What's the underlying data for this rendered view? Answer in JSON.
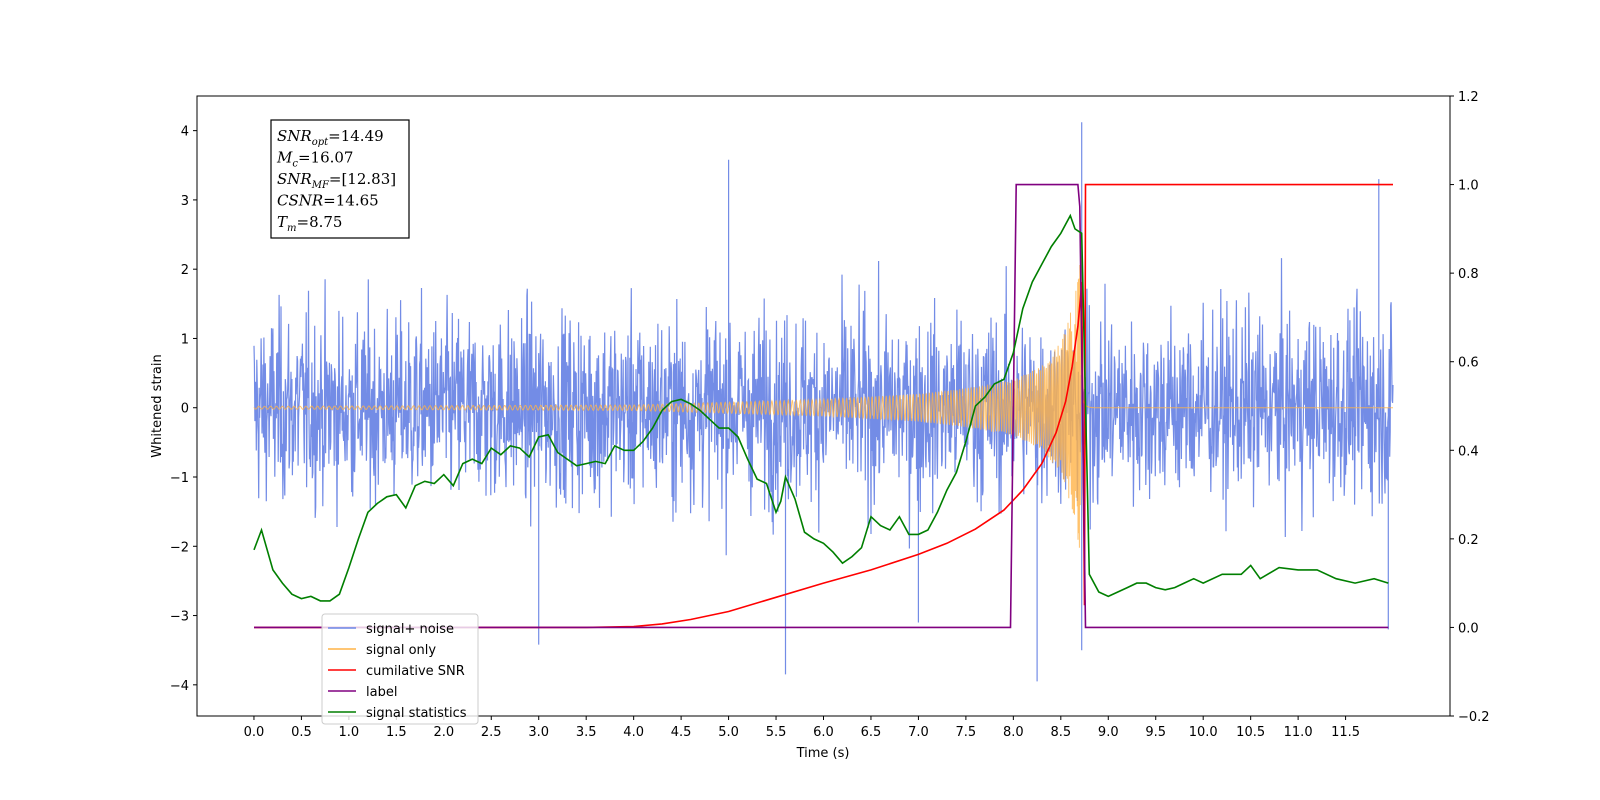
{
  "chart_data": {
    "type": "line",
    "xlabel": "Time (s)",
    "ylabel": "Whitened strain",
    "xlim": [
      -0.6,
      12.6
    ],
    "ylim": [
      -4.45,
      4.5
    ],
    "y2lim": [
      -0.2,
      1.2
    ],
    "x_ticks": [
      0.0,
      0.5,
      1.0,
      1.5,
      2.0,
      2.5,
      3.0,
      3.5,
      4.0,
      4.5,
      5.0,
      5.5,
      6.0,
      6.5,
      7.0,
      7.5,
      8.0,
      8.5,
      9.0,
      9.5,
      10.0,
      10.5,
      11.0,
      11.5
    ],
    "x_tick_labels": [
      "0.0",
      "0.5",
      "1.0",
      "1.5",
      "2.0",
      "2.5",
      "3.0",
      "3.5",
      "4.0",
      "4.5",
      "5.0",
      "5.5",
      "6.0",
      "6.5",
      "7.0",
      "7.5",
      "8.0",
      "8.5",
      "9.0",
      "9.5",
      "10.0",
      "10.5",
      "11.0",
      "11.5"
    ],
    "y_ticks": [
      4,
      3,
      2,
      1,
      0,
      -1,
      -2,
      -3,
      -4
    ],
    "y_tick_labels": [
      "4",
      "3",
      "2",
      "1",
      "0",
      "−1",
      "−2",
      "−3",
      "−4"
    ],
    "y2_ticks": [
      1.2,
      1.0,
      0.8,
      0.6,
      0.4,
      0.2,
      0.0,
      -0.2
    ],
    "y2_tick_labels": [
      "1.2",
      "1.0",
      "0.8",
      "0.6",
      "0.4",
      "0.2",
      "0.0",
      "−0.2"
    ],
    "grid": false,
    "legend_position": "bottom-left",
    "noise_series": {
      "name": "signal+ noise",
      "color": "#6b86e5",
      "x_start": 0.0,
      "x_end": 12.0,
      "typical_range": [
        -2.3,
        2.5
      ],
      "extremes": [
        {
          "x": 5.0,
          "y": 3.58
        },
        {
          "x": 5.6,
          "y": -3.85
        },
        {
          "x": 8.25,
          "y": -3.95
        },
        {
          "x": 8.72,
          "y": 4.12
        },
        {
          "x": 8.72,
          "y": -3.5
        },
        {
          "x": 3.0,
          "y": -3.42
        },
        {
          "x": 7.0,
          "y": -3.1
        },
        {
          "x": 11.85,
          "y": 3.3
        },
        {
          "x": 11.95,
          "y": -3.2
        }
      ]
    },
    "chirp_series": {
      "name": "signal only",
      "color": "#ffb347",
      "x_start": 0.0,
      "x_end": 12.0,
      "merger_time": 8.72,
      "envelope": [
        [
          0.0,
          0.02
        ],
        [
          4.0,
          0.04
        ],
        [
          5.0,
          0.08
        ],
        [
          6.0,
          0.12
        ],
        [
          7.0,
          0.2
        ],
        [
          7.5,
          0.28
        ],
        [
          8.0,
          0.4
        ],
        [
          8.3,
          0.6
        ],
        [
          8.5,
          0.95
        ],
        [
          8.65,
          1.6
        ],
        [
          8.72,
          2.3
        ]
      ]
    },
    "series": [
      {
        "name": "cumilative SNR",
        "color": "#ff0000",
        "axis": "right",
        "x": [
          0.0,
          3.5,
          4.0,
          4.3,
          4.6,
          5.0,
          5.5,
          6.0,
          6.5,
          7.0,
          7.3,
          7.6,
          7.9,
          8.1,
          8.3,
          8.45,
          8.55,
          8.62,
          8.68,
          8.71,
          8.72,
          8.75,
          8.76,
          12.0
        ],
        "y": [
          0.0,
          0.0,
          0.002,
          0.008,
          0.018,
          0.036,
          0.068,
          0.1,
          0.13,
          0.165,
          0.19,
          0.222,
          0.265,
          0.31,
          0.37,
          0.44,
          0.51,
          0.59,
          0.68,
          0.75,
          0.78,
          0.05,
          1.0,
          1.0
        ]
      },
      {
        "name": "label",
        "color": "#800080",
        "axis": "right",
        "x": [
          0.0,
          7.97,
          8.03,
          8.68,
          8.7,
          8.76,
          11.95
        ],
        "y": [
          0.0,
          0.0,
          1.0,
          1.0,
          0.95,
          0.0,
          0.0
        ]
      },
      {
        "name": "signal statistics",
        "color": "#007f00",
        "axis": "right",
        "x": [
          0.0,
          0.08,
          0.2,
          0.3,
          0.4,
          0.5,
          0.6,
          0.7,
          0.8,
          0.9,
          1.0,
          1.1,
          1.2,
          1.3,
          1.4,
          1.5,
          1.6,
          1.7,
          1.8,
          1.9,
          2.0,
          2.1,
          2.2,
          2.3,
          2.4,
          2.5,
          2.6,
          2.7,
          2.8,
          2.9,
          3.0,
          3.1,
          3.2,
          3.3,
          3.4,
          3.5,
          3.6,
          3.7,
          3.8,
          3.9,
          4.0,
          4.1,
          4.2,
          4.3,
          4.4,
          4.5,
          4.6,
          4.7,
          4.8,
          4.9,
          5.0,
          5.1,
          5.2,
          5.3,
          5.4,
          5.5,
          5.55,
          5.6,
          5.7,
          5.8,
          5.9,
          6.0,
          6.1,
          6.2,
          6.3,
          6.4,
          6.5,
          6.6,
          6.7,
          6.8,
          6.9,
          7.0,
          7.1,
          7.2,
          7.3,
          7.4,
          7.5,
          7.6,
          7.7,
          7.8,
          7.9,
          8.0,
          8.1,
          8.2,
          8.3,
          8.4,
          8.5,
          8.6,
          8.65,
          8.72,
          8.8,
          8.9,
          9.0,
          9.1,
          9.2,
          9.3,
          9.4,
          9.5,
          9.6,
          9.7,
          9.8,
          9.9,
          10.0,
          10.2,
          10.4,
          10.5,
          10.6,
          10.8,
          11.0,
          11.2,
          11.4,
          11.6,
          11.8,
          11.95
        ],
        "y": [
          0.175,
          0.22,
          0.13,
          0.1,
          0.075,
          0.065,
          0.07,
          0.06,
          0.06,
          0.075,
          0.135,
          0.2,
          0.26,
          0.28,
          0.295,
          0.3,
          0.27,
          0.32,
          0.33,
          0.325,
          0.345,
          0.32,
          0.37,
          0.38,
          0.37,
          0.405,
          0.39,
          0.41,
          0.405,
          0.385,
          0.43,
          0.435,
          0.395,
          0.38,
          0.365,
          0.37,
          0.375,
          0.37,
          0.41,
          0.4,
          0.4,
          0.42,
          0.45,
          0.49,
          0.51,
          0.515,
          0.505,
          0.49,
          0.47,
          0.45,
          0.45,
          0.43,
          0.38,
          0.335,
          0.325,
          0.26,
          0.285,
          0.34,
          0.29,
          0.215,
          0.2,
          0.19,
          0.17,
          0.145,
          0.16,
          0.18,
          0.25,
          0.23,
          0.22,
          0.25,
          0.21,
          0.21,
          0.22,
          0.26,
          0.31,
          0.35,
          0.42,
          0.5,
          0.52,
          0.55,
          0.56,
          0.62,
          0.72,
          0.78,
          0.82,
          0.86,
          0.89,
          0.93,
          0.9,
          0.89,
          0.12,
          0.08,
          0.07,
          0.08,
          0.09,
          0.1,
          0.1,
          0.09,
          0.085,
          0.09,
          0.1,
          0.11,
          0.1,
          0.12,
          0.12,
          0.14,
          0.11,
          0.135,
          0.13,
          0.13,
          0.11,
          0.1,
          0.11,
          0.1
        ]
      }
    ],
    "legend": [
      {
        "label": "signal+ noise",
        "color": "#6b86e5"
      },
      {
        "label": "signal only",
        "color": "#ffb347"
      },
      {
        "label": "cumilative SNR",
        "color": "#ff0000"
      },
      {
        "label": "label",
        "color": "#800080"
      },
      {
        "label": "signal statistics",
        "color": "#007f00"
      }
    ],
    "annotation": {
      "lines": [
        {
          "base": "SNR",
          "sub": "opt",
          "value": "=14.49"
        },
        {
          "base": "M",
          "sub": "c",
          "value": "=16.07"
        },
        {
          "base": "SNR",
          "sub": "MF",
          "value": "=[12.83]"
        },
        {
          "base": "CSNR",
          "sub": "",
          "value": "=14.65"
        },
        {
          "base": "T",
          "sub": "m",
          "value": "=8.75"
        }
      ]
    }
  }
}
